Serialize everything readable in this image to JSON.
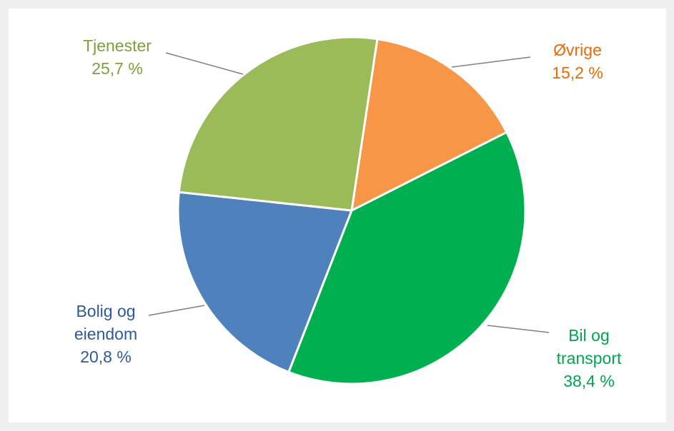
{
  "chart_data": {
    "type": "pie",
    "title": "",
    "slices": [
      {
        "label_lines": [
          "Øvrige"
        ],
        "value": 15.2,
        "value_label": "15,2 %",
        "color": "#f79646",
        "text_color": "#e46c0a"
      },
      {
        "label_lines": [
          "Bil og",
          "transport"
        ],
        "value": 38.4,
        "value_label": "38,4 %",
        "color": "#00b050",
        "text_color": "#00a54f"
      },
      {
        "label_lines": [
          "Bolig og",
          "eiendom"
        ],
        "value": 20.8,
        "value_label": "20,8 %",
        "color": "#4f81bd",
        "text_color": "#2e5a9a"
      },
      {
        "label_lines": [
          "Tjenester"
        ],
        "value": 25.7,
        "value_label": "25,7 %",
        "color": "#9bbb59",
        "text_color": "#7ea03c"
      }
    ],
    "start_angle_deg": 8.5,
    "direction": "clockwise",
    "leader_color": "#7f7f7f",
    "background": "#ffffff"
  }
}
